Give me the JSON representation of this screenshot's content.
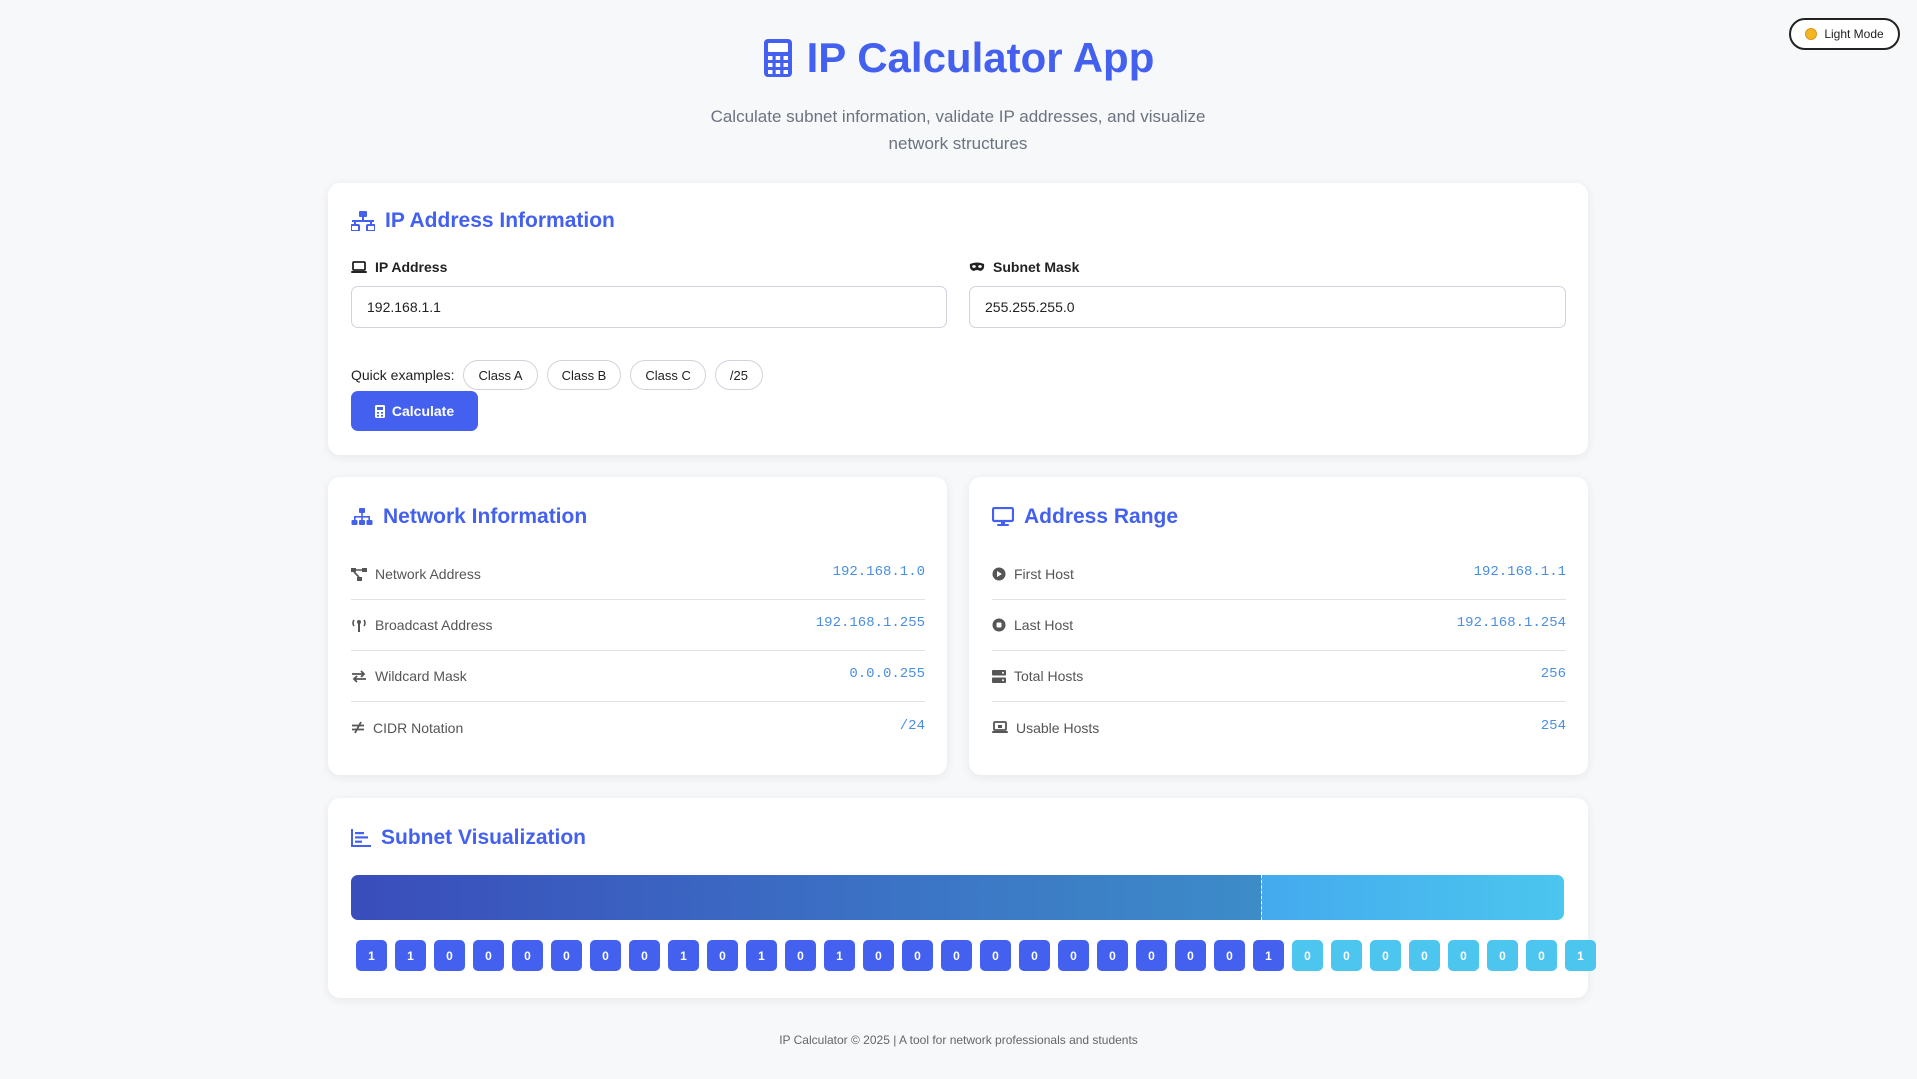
{
  "theme_toggle": {
    "label": "Light Mode",
    "icon": "sun-icon"
  },
  "header": {
    "title": "IP Calculator App",
    "subtitle": "Calculate subnet information, validate IP addresses, and visualize network structures"
  },
  "ip_info": {
    "title": "IP Address Information",
    "ip_label": "IP Address",
    "ip_value": "192.168.1.1",
    "mask_label": "Subnet Mask",
    "mask_value": "255.255.255.0",
    "quick_label": "Quick examples:",
    "examples": [
      "Class A",
      "Class B",
      "Class C",
      "/25"
    ],
    "calculate_label": "Calculate"
  },
  "network_info": {
    "title": "Network Information",
    "rows": [
      {
        "label": "Network Address",
        "value": "192.168.1.0"
      },
      {
        "label": "Broadcast Address",
        "value": "192.168.1.255"
      },
      {
        "label": "Wildcard Mask",
        "value": "0.0.0.255"
      },
      {
        "label": "CIDR Notation",
        "value": "/24"
      }
    ]
  },
  "address_range": {
    "title": "Address Range",
    "rows": [
      {
        "label": "First Host",
        "value": "192.168.1.1"
      },
      {
        "label": "Last Host",
        "value": "192.168.1.254"
      },
      {
        "label": "Total Hosts",
        "value": "256"
      },
      {
        "label": "Usable Hosts",
        "value": "254"
      }
    ]
  },
  "visualization": {
    "title": "Subnet Visualization",
    "network_bits": 24,
    "bits": [
      "1",
      "1",
      "0",
      "0",
      "0",
      "0",
      "0",
      "0",
      "1",
      "0",
      "1",
      "0",
      "1",
      "0",
      "0",
      "0",
      "0",
      "0",
      "0",
      "0",
      "0",
      "0",
      "0",
      "1",
      "0",
      "0",
      "0",
      "0",
      "0",
      "0",
      "0",
      "1"
    ]
  },
  "colors": {
    "accent": "#4361ee",
    "host": "#4cc6ef",
    "value": "#4a8fe0"
  },
  "footer": {
    "text": "IP Calculator © 2025 | A tool for network professionals and students"
  }
}
